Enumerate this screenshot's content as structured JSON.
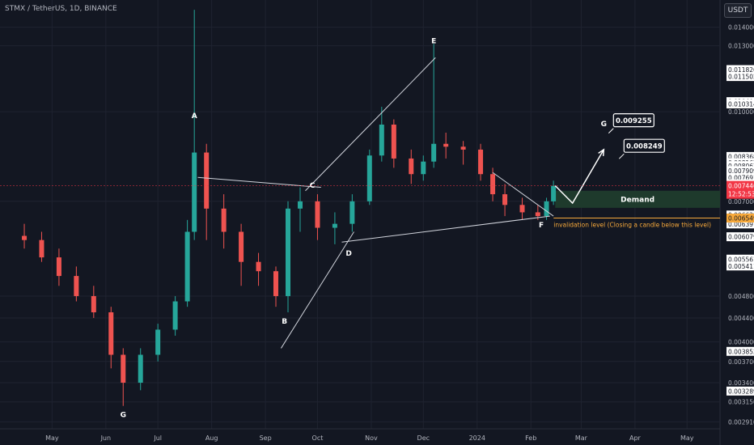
{
  "header": {
    "symbol": "STMX / TetherUS, 1D, BINANCE",
    "currency": "USDT"
  },
  "colors": {
    "background": "#131722",
    "up": "#26a69a",
    "down": "#ef5350",
    "pattern_line": "#d1d4dc",
    "demand_zone": "#1e3a2c",
    "invalidation": "#f7a93b",
    "price_box": "#f23645"
  },
  "chart_data": {
    "type": "candlestick",
    "y_scale": "log",
    "ylim": [
      0.00283,
      0.0156
    ],
    "x_labels": [
      "May",
      "Jun",
      "Jul",
      "Aug",
      "Sep",
      "Oct",
      "Nov",
      "Dec",
      "2024",
      "Feb",
      "Mar",
      "Apr",
      "May"
    ],
    "y_ticks": [
      0.014,
      0.013,
      0.011826,
      0.011502,
      0.010409,
      0.010314,
      0.01,
      0.008368,
      0.008162,
      0.008067,
      0.007909,
      0.007691,
      0.007505,
      0.007,
      0.006629,
      0.006531,
      0.006397,
      0.006079,
      0.005561,
      0.005411,
      0.0048,
      0.0044,
      0.004,
      0.003852,
      0.0037,
      0.0034,
      0.003289,
      0.00315,
      0.00291
    ],
    "highlighted_ticks": [
      0.011826,
      0.011502,
      0.010409,
      0.010314,
      0.008368,
      0.008162,
      0.008067,
      0.007909,
      0.007691,
      0.007505,
      0.006629,
      0.006531,
      0.006397,
      0.006079,
      0.005561,
      0.005411,
      0.003852,
      0.003289
    ],
    "current_price": {
      "value": 0.007446,
      "label": "0.007446",
      "countdown": "12:52:53"
    },
    "invalidation_price": {
      "value": 0.006549,
      "label": "0.006549"
    },
    "pivots": [
      {
        "label": "A",
        "date": "2023-07-22",
        "price": 0.0095
      },
      {
        "label": "B",
        "date": "2023-09-12",
        "price": 0.0045
      },
      {
        "label": "C",
        "date": "2023-09-28",
        "price": 0.0072
      },
      {
        "label": "D",
        "date": "2023-10-19",
        "price": 0.0059
      },
      {
        "label": "E",
        "date": "2023-12-07",
        "price": 0.0128
      },
      {
        "label": "F",
        "date": "2024-02-07",
        "price": 0.0066
      },
      {
        "label": "G",
        "date": "2023-06-11",
        "price": 0.0031
      },
      {
        "label": "G",
        "date": "2024-03-14",
        "price": 0.0092
      }
    ],
    "targets": [
      {
        "value": "0.009255",
        "date": "2024-03-14",
        "price": 0.0093
      },
      {
        "value": "0.008249",
        "date": "2024-03-14",
        "price": 0.0084
      }
    ],
    "demand_zone": {
      "label": "Demand",
      "from_date": "2024-02-15",
      "high": 0.0073,
      "low": 0.00682
    },
    "invalidation_note": "invalidation level (Closing a candle below this level)",
    "trendlines": [
      {
        "from": {
          "date": "2023-07-24",
          "price": 0.0077
        },
        "to": {
          "date": "2023-10-03",
          "price": 0.0074
        }
      },
      {
        "from": {
          "date": "2023-09-10",
          "price": 0.0039
        },
        "to": {
          "date": "2023-10-22",
          "price": 0.0062
        }
      },
      {
        "from": {
          "date": "2023-09-24",
          "price": 0.0073
        },
        "to": {
          "date": "2023-11-09",
          "price": 0.0101
        }
      },
      {
        "from": {
          "date": "2023-11-09",
          "price": 0.0101
        },
        "to": {
          "date": "2023-12-08",
          "price": 0.0124
        }
      },
      {
        "from": {
          "date": "2023-10-15",
          "price": 0.00595
        },
        "to": {
          "date": "2024-02-12",
          "price": 0.0066
        }
      },
      {
        "from": {
          "date": "2024-01-10",
          "price": 0.00785
        },
        "to": {
          "date": "2024-02-14",
          "price": 0.0066
        }
      }
    ],
    "projection": [
      {
        "date": "2024-02-15",
        "price": 0.00745
      },
      {
        "date": "2024-02-25",
        "price": 0.00695
      },
      {
        "date": "2024-03-14",
        "price": 0.0086
      }
    ],
    "series": [
      {
        "date": "2023-04-15",
        "o": 0.0061,
        "h": 0.0064,
        "l": 0.0058,
        "c": 0.006
      },
      {
        "date": "2023-04-25",
        "o": 0.006,
        "h": 0.0062,
        "l": 0.0055,
        "c": 0.0056
      },
      {
        "date": "2023-05-05",
        "o": 0.0056,
        "h": 0.0058,
        "l": 0.005,
        "c": 0.0052
      },
      {
        "date": "2023-05-15",
        "o": 0.0052,
        "h": 0.0054,
        "l": 0.0047,
        "c": 0.0048
      },
      {
        "date": "2023-05-25",
        "o": 0.0048,
        "h": 0.005,
        "l": 0.0044,
        "c": 0.0045
      },
      {
        "date": "2023-06-04",
        "o": 0.0045,
        "h": 0.0046,
        "l": 0.0036,
        "c": 0.0038
      },
      {
        "date": "2023-06-11",
        "o": 0.0038,
        "h": 0.0039,
        "l": 0.0031,
        "c": 0.0034
      },
      {
        "date": "2023-06-21",
        "o": 0.0034,
        "h": 0.0039,
        "l": 0.0033,
        "c": 0.0038
      },
      {
        "date": "2023-07-01",
        "o": 0.0038,
        "h": 0.0043,
        "l": 0.0037,
        "c": 0.0042
      },
      {
        "date": "2023-07-11",
        "o": 0.0042,
        "h": 0.0048,
        "l": 0.0041,
        "c": 0.0047
      },
      {
        "date": "2023-07-18",
        "o": 0.0047,
        "h": 0.0065,
        "l": 0.0046,
        "c": 0.0062
      },
      {
        "date": "2023-07-22",
        "o": 0.0062,
        "h": 0.015,
        "l": 0.006,
        "c": 0.0085
      },
      {
        "date": "2023-07-29",
        "o": 0.0085,
        "h": 0.0088,
        "l": 0.006,
        "c": 0.0068
      },
      {
        "date": "2023-08-08",
        "o": 0.0068,
        "h": 0.0072,
        "l": 0.0058,
        "c": 0.0062
      },
      {
        "date": "2023-08-18",
        "o": 0.0062,
        "h": 0.0064,
        "l": 0.005,
        "c": 0.0055
      },
      {
        "date": "2023-08-28",
        "o": 0.0055,
        "h": 0.0057,
        "l": 0.005,
        "c": 0.0053
      },
      {
        "date": "2023-09-07",
        "o": 0.0053,
        "h": 0.0054,
        "l": 0.0046,
        "c": 0.0048
      },
      {
        "date": "2023-09-14",
        "o": 0.0048,
        "h": 0.007,
        "l": 0.0045,
        "c": 0.0068
      },
      {
        "date": "2023-09-21",
        "o": 0.0068,
        "h": 0.0074,
        "l": 0.0062,
        "c": 0.007
      },
      {
        "date": "2023-10-01",
        "o": 0.007,
        "h": 0.0072,
        "l": 0.006,
        "c": 0.0063
      },
      {
        "date": "2023-10-11",
        "o": 0.0063,
        "h": 0.0067,
        "l": 0.0059,
        "c": 0.0064
      },
      {
        "date": "2023-10-21",
        "o": 0.0064,
        "h": 0.0072,
        "l": 0.0062,
        "c": 0.007
      },
      {
        "date": "2023-10-31",
        "o": 0.007,
        "h": 0.0086,
        "l": 0.0069,
        "c": 0.0084
      },
      {
        "date": "2023-11-07",
        "o": 0.0084,
        "h": 0.0102,
        "l": 0.0082,
        "c": 0.0095
      },
      {
        "date": "2023-11-14",
        "o": 0.0095,
        "h": 0.0097,
        "l": 0.008,
        "c": 0.0083
      },
      {
        "date": "2023-11-24",
        "o": 0.0083,
        "h": 0.0086,
        "l": 0.0075,
        "c": 0.0078
      },
      {
        "date": "2023-12-01",
        "o": 0.0078,
        "h": 0.0084,
        "l": 0.0076,
        "c": 0.0082
      },
      {
        "date": "2023-12-07",
        "o": 0.0082,
        "h": 0.0131,
        "l": 0.008,
        "c": 0.0088
      },
      {
        "date": "2023-12-14",
        "o": 0.0088,
        "h": 0.0092,
        "l": 0.0083,
        "c": 0.0087
      },
      {
        "date": "2023-12-24",
        "o": 0.0087,
        "h": 0.0089,
        "l": 0.0081,
        "c": 0.0086
      },
      {
        "date": "2024-01-03",
        "o": 0.0086,
        "h": 0.0088,
        "l": 0.0076,
        "c": 0.0078
      },
      {
        "date": "2024-01-10",
        "o": 0.0078,
        "h": 0.008,
        "l": 0.007,
        "c": 0.0072
      },
      {
        "date": "2024-01-17",
        "o": 0.0072,
        "h": 0.0075,
        "l": 0.0066,
        "c": 0.0069
      },
      {
        "date": "2024-01-27",
        "o": 0.0069,
        "h": 0.0071,
        "l": 0.0065,
        "c": 0.0067
      },
      {
        "date": "2024-02-05",
        "o": 0.0067,
        "h": 0.0069,
        "l": 0.0065,
        "c": 0.0066
      },
      {
        "date": "2024-02-10",
        "o": 0.0066,
        "h": 0.0071,
        "l": 0.0065,
        "c": 0.007
      },
      {
        "date": "2024-02-14",
        "o": 0.007,
        "h": 0.0076,
        "l": 0.0069,
        "c": 0.007446
      }
    ]
  }
}
